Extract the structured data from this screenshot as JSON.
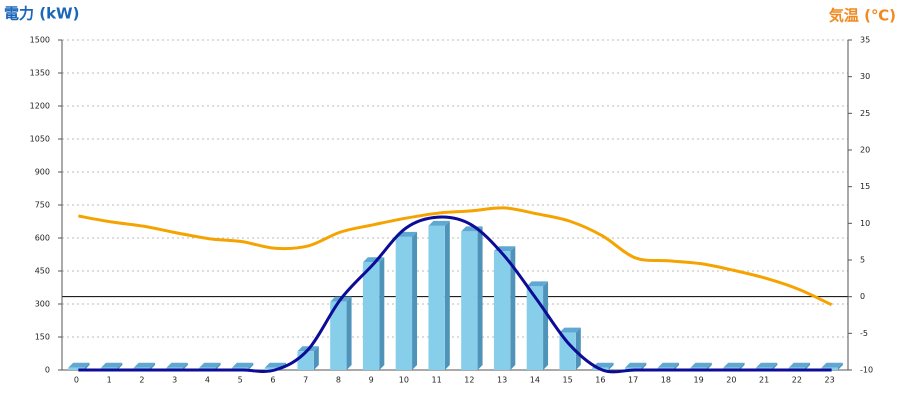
{
  "chart_data": {
    "type": "combo",
    "y_title": "電力 (kW)",
    "y2_title": "気温 (℃)",
    "categories": [
      "0",
      "1",
      "2",
      "3",
      "4",
      "5",
      "6",
      "7",
      "8",
      "9",
      "10",
      "11",
      "12",
      "13",
      "14",
      "15",
      "16",
      "17",
      "18",
      "19",
      "20",
      "21",
      "22",
      "23"
    ],
    "series": [
      {
        "type": "bar",
        "color": "#87ceeb",
        "values": [
          10,
          10,
          10,
          10,
          10,
          10,
          10,
          85,
          310,
          490,
          605,
          655,
          630,
          540,
          380,
          170,
          10,
          10,
          10,
          10,
          10,
          10,
          10,
          10
        ]
      },
      {
        "type": "line",
        "color": "#0c0c96",
        "values": [
          0,
          0,
          0,
          0,
          0,
          0,
          0,
          90,
          320,
          480,
          645,
          695,
          660,
          520,
          320,
          115,
          0,
          0,
          0,
          0,
          0,
          0,
          0,
          0
        ]
      },
      {
        "type": "line",
        "color": "#f5a300",
        "axis": "y2",
        "values": [
          11.0,
          10.2,
          9.6,
          8.7,
          7.9,
          7.5,
          6.6,
          6.9,
          8.8,
          9.8,
          10.7,
          11.4,
          11.7,
          12.1,
          11.3,
          10.3,
          8.3,
          5.3,
          4.9,
          4.5,
          3.6,
          2.5,
          1.0,
          -1.1
        ]
      }
    ],
    "ylim": [
      0,
      1500
    ],
    "yticks": [
      0,
      150,
      300,
      450,
      600,
      750,
      900,
      1050,
      1200,
      1350,
      1500
    ],
    "y2lim": [
      -10,
      35
    ],
    "y2ticks": [
      -10,
      -5,
      0,
      5,
      10,
      15,
      20,
      25,
      30,
      35
    ],
    "grid": true
  }
}
